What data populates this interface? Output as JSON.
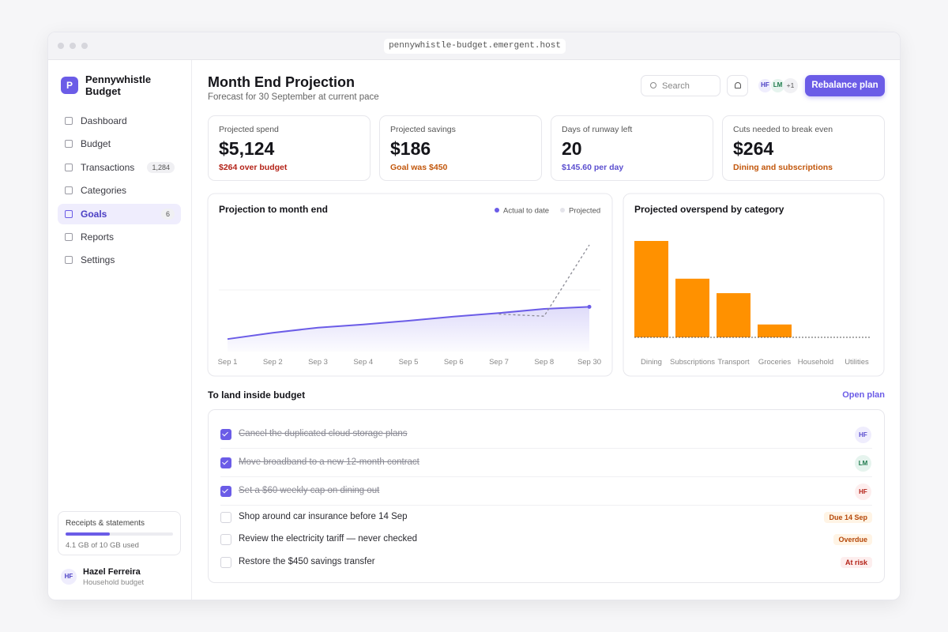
{
  "browser": {
    "url": "pennywhistle-budget.emergent.host"
  },
  "sidebar": {
    "brand_initial": "P",
    "brand": "Pennywhistle Budget",
    "nav": [
      {
        "label": "Dashboard"
      },
      {
        "label": "Budget"
      },
      {
        "label": "Transactions",
        "badge": "1,284"
      },
      {
        "label": "Categories"
      },
      {
        "label": "Goals",
        "badge": "6",
        "active": true
      },
      {
        "label": "Reports"
      },
      {
        "label": "Settings"
      }
    ],
    "storage": {
      "title": "Receipts & statements",
      "used_gb": 4.1,
      "total_gb": 10,
      "label": "4.1 GB of 10 GB used"
    },
    "user": {
      "initials": "HF",
      "name": "Hazel Ferreira",
      "role": "Household budget"
    }
  },
  "header": {
    "title": "Month End Projection",
    "subtitle": "Forecast for 30 September at current pace",
    "search_placeholder": "Search",
    "avatars": [
      "HF",
      "LM"
    ],
    "more": "+1",
    "button": "Rebalance plan"
  },
  "kpis": [
    {
      "label": "Projected spend",
      "value": "$5,124",
      "note": "$264 over budget",
      "tone": "#b42318"
    },
    {
      "label": "Projected savings",
      "value": "$186",
      "note": "Goal was $450",
      "tone": "#c2570c"
    },
    {
      "label": "Days of runway left",
      "value": "20",
      "note": "$145.60 per day",
      "tone": "#5b4fcf"
    },
    {
      "label": "Cuts needed to break even",
      "value": "$264",
      "note": "Dining and subscriptions",
      "tone": "#c2570c"
    }
  ],
  "line_chart": {
    "type": "line",
    "title": "Projection to month end",
    "categories": [
      "Sep 1",
      "Sep 2",
      "Sep 3",
      "Sep 4",
      "Sep 5",
      "Sep 6",
      "Sep 7",
      "Sep 8",
      "Sep 30"
    ],
    "series": [
      {
        "name": "Actual to date",
        "color": "#6b5ce7",
        "values": [
          600,
          900,
          1150,
          1300,
          1480,
          1680,
          1850,
          2050,
          2150
        ]
      },
      {
        "name": "Projected",
        "color": "#8a8a94",
        "values": [
          null,
          null,
          null,
          null,
          null,
          null,
          1800,
          1700,
          5124
        ]
      }
    ]
  },
  "bar_chart": {
    "type": "bar",
    "title": "Projected overspend by category",
    "categories": [
      "Dining",
      "Subscriptions",
      "Transport",
      "Groceries",
      "Household",
      "Utilities"
    ],
    "values": [
      120,
      73,
      55,
      16,
      0,
      0
    ],
    "color": "#ff9100"
  },
  "tasks": {
    "title": "To land inside budget",
    "link": "Open plan",
    "items": [
      {
        "text": "Cancel the duplicated cloud storage plans",
        "done": true,
        "assignee": "HF",
        "tone": "#5b4fcf",
        "bg": "#efedfd"
      },
      {
        "text": "Move broadband to a new 12-month contract",
        "done": true,
        "assignee": "LM",
        "tone": "#1f7a4d",
        "bg": "#e6f4ee"
      },
      {
        "text": "Set a $60 weekly cap on dining out",
        "done": true,
        "assignee": "HF",
        "tone": "#b42318",
        "bg": "#fdeeee"
      },
      {
        "text": "Shop around car insurance before 14 Sep",
        "done": false,
        "status": "Due 14 Sep",
        "tone": "#b54708",
        "bg": "#fff4e5"
      },
      {
        "text": "Review the electricity tariff — never checked",
        "done": false,
        "status": "Overdue",
        "tone": "#b54708",
        "bg": "#fff4e5"
      },
      {
        "text": "Restore the $450 savings transfer",
        "done": false,
        "status": "At risk",
        "tone": "#b42318",
        "bg": "#fdeeee"
      }
    ]
  }
}
